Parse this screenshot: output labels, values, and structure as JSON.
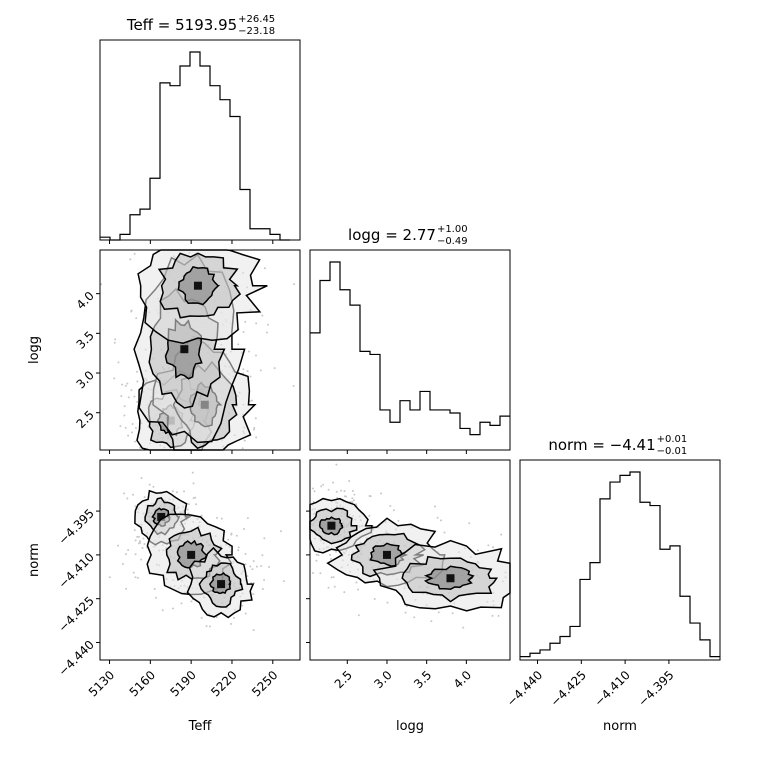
{
  "chart_data": {
    "type": "corner",
    "parameters": [
      "Teff",
      "logg",
      "norm"
    ],
    "titles": [
      {
        "label": "Teff = 5193.95",
        "sup": "+26.45",
        "sub": "−23.18"
      },
      {
        "label": "logg = 2.77",
        "sup": "+1.00",
        "sub": "−0.49"
      },
      {
        "label": "norm = −4.41",
        "sup": "+0.01",
        "sub": "−0.01"
      }
    ],
    "ranges": {
      "Teff": [
        5123,
        5270
      ],
      "logg": [
        2.03,
        4.55
      ],
      "norm": [
        -4.446,
        -4.3775
      ]
    },
    "ticks": {
      "Teff": [
        "5130",
        "5160",
        "5190",
        "5220",
        "5250"
      ],
      "logg": [
        "2.5",
        "3.0",
        "3.5",
        "4.0"
      ],
      "norm": [
        "−4.440",
        "−4.425",
        "−4.410",
        "−4.395"
      ]
    },
    "histograms": {
      "Teff": {
        "edges_start": 5123,
        "bin_width": 7.35,
        "counts": [
          1,
          0,
          2,
          9,
          11,
          22,
          56,
          55,
          62,
          67,
          62,
          55,
          50,
          44,
          18,
          4,
          4,
          2,
          0
        ]
      },
      "logg": {
        "edges_start": 2.03,
        "bin_width": 0.126,
        "counts": [
          38,
          55,
          61,
          52,
          47,
          32,
          31,
          13,
          9,
          16,
          13,
          19,
          13,
          13,
          12,
          7,
          5,
          9,
          8,
          11
        ]
      },
      "norm": {
        "edges_start": -4.446,
        "bin_width": 0.003425,
        "counts": [
          1,
          2,
          3,
          5,
          7,
          10,
          24,
          29,
          48,
          53,
          55,
          56,
          47,
          46,
          33,
          34,
          19,
          11,
          6,
          1
        ]
      }
    },
    "scatter_2d": {
      "logg_vs_Teff": {
        "clusters": [
          {
            "x": 5175,
            "y": 2.4,
            "spread_x": 12,
            "spread_y": 0.25,
            "weight": 3
          },
          {
            "x": 5200,
            "y": 2.6,
            "spread_x": 15,
            "spread_y": 0.35,
            "weight": 2
          },
          {
            "x": 5185,
            "y": 3.3,
            "spread_x": 18,
            "spread_y": 0.5,
            "weight": 1.5
          },
          {
            "x": 5195,
            "y": 4.1,
            "spread_x": 20,
            "spread_y": 0.3,
            "weight": 1
          }
        ]
      },
      "norm_vs_Teff": {
        "clusters": [
          {
            "x": 5168,
            "y": -4.397,
            "spread_x": 8,
            "spread_y": 0.004,
            "weight": 2
          },
          {
            "x": 5190,
            "y": -4.41,
            "spread_x": 14,
            "spread_y": 0.006,
            "weight": 2.5
          },
          {
            "x": 5212,
            "y": -4.42,
            "spread_x": 10,
            "spread_y": 0.005,
            "weight": 1.5
          }
        ]
      },
      "norm_vs_logg": {
        "clusters": [
          {
            "x": 2.3,
            "y": -4.4,
            "spread_x": 0.2,
            "spread_y": 0.004,
            "weight": 3
          },
          {
            "x": 3.0,
            "y": -4.41,
            "spread_x": 0.3,
            "spread_y": 0.005,
            "weight": 1.5
          },
          {
            "x": 3.8,
            "y": -4.418,
            "spread_x": 0.4,
            "spread_y": 0.005,
            "weight": 1.5
          }
        ]
      }
    }
  }
}
